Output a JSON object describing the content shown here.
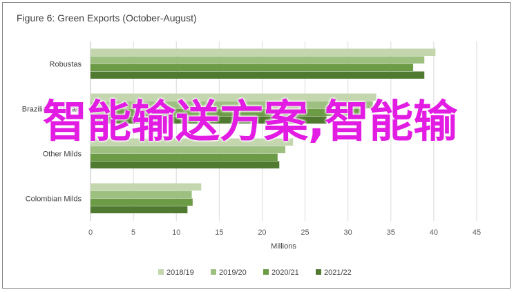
{
  "chart_data": {
    "type": "bar",
    "orientation": "horizontal",
    "title": "Figure 6: Green Exports (October-August)",
    "xlabel": "Millions",
    "ylabel": "",
    "xlim": [
      0,
      45
    ],
    "xticks": [
      0,
      5,
      10,
      15,
      20,
      25,
      30,
      35,
      40,
      45
    ],
    "grid": true,
    "legend_position": "bottom",
    "categories": [
      "Robustas",
      "Brazilian Naturals",
      "Other Milds",
      "Colombian Milds"
    ],
    "series": [
      {
        "name": "2018/19",
        "color": "#c3d6ae",
        "values": [
          40.2,
          33.3,
          23.6,
          12.9
        ]
      },
      {
        "name": "2019/20",
        "color": "#9dbf80",
        "values": [
          38.9,
          32.9,
          22.7,
          11.8
        ]
      },
      {
        "name": "2020/21",
        "color": "#6c9b45",
        "values": [
          37.6,
          32.0,
          21.8,
          11.9
        ]
      },
      {
        "name": "2021/22",
        "color": "#4f7a2f",
        "values": [
          38.9,
          27.5,
          22.0,
          11.3
        ]
      }
    ]
  },
  "overlay_text": "智能输送方案,智能输"
}
